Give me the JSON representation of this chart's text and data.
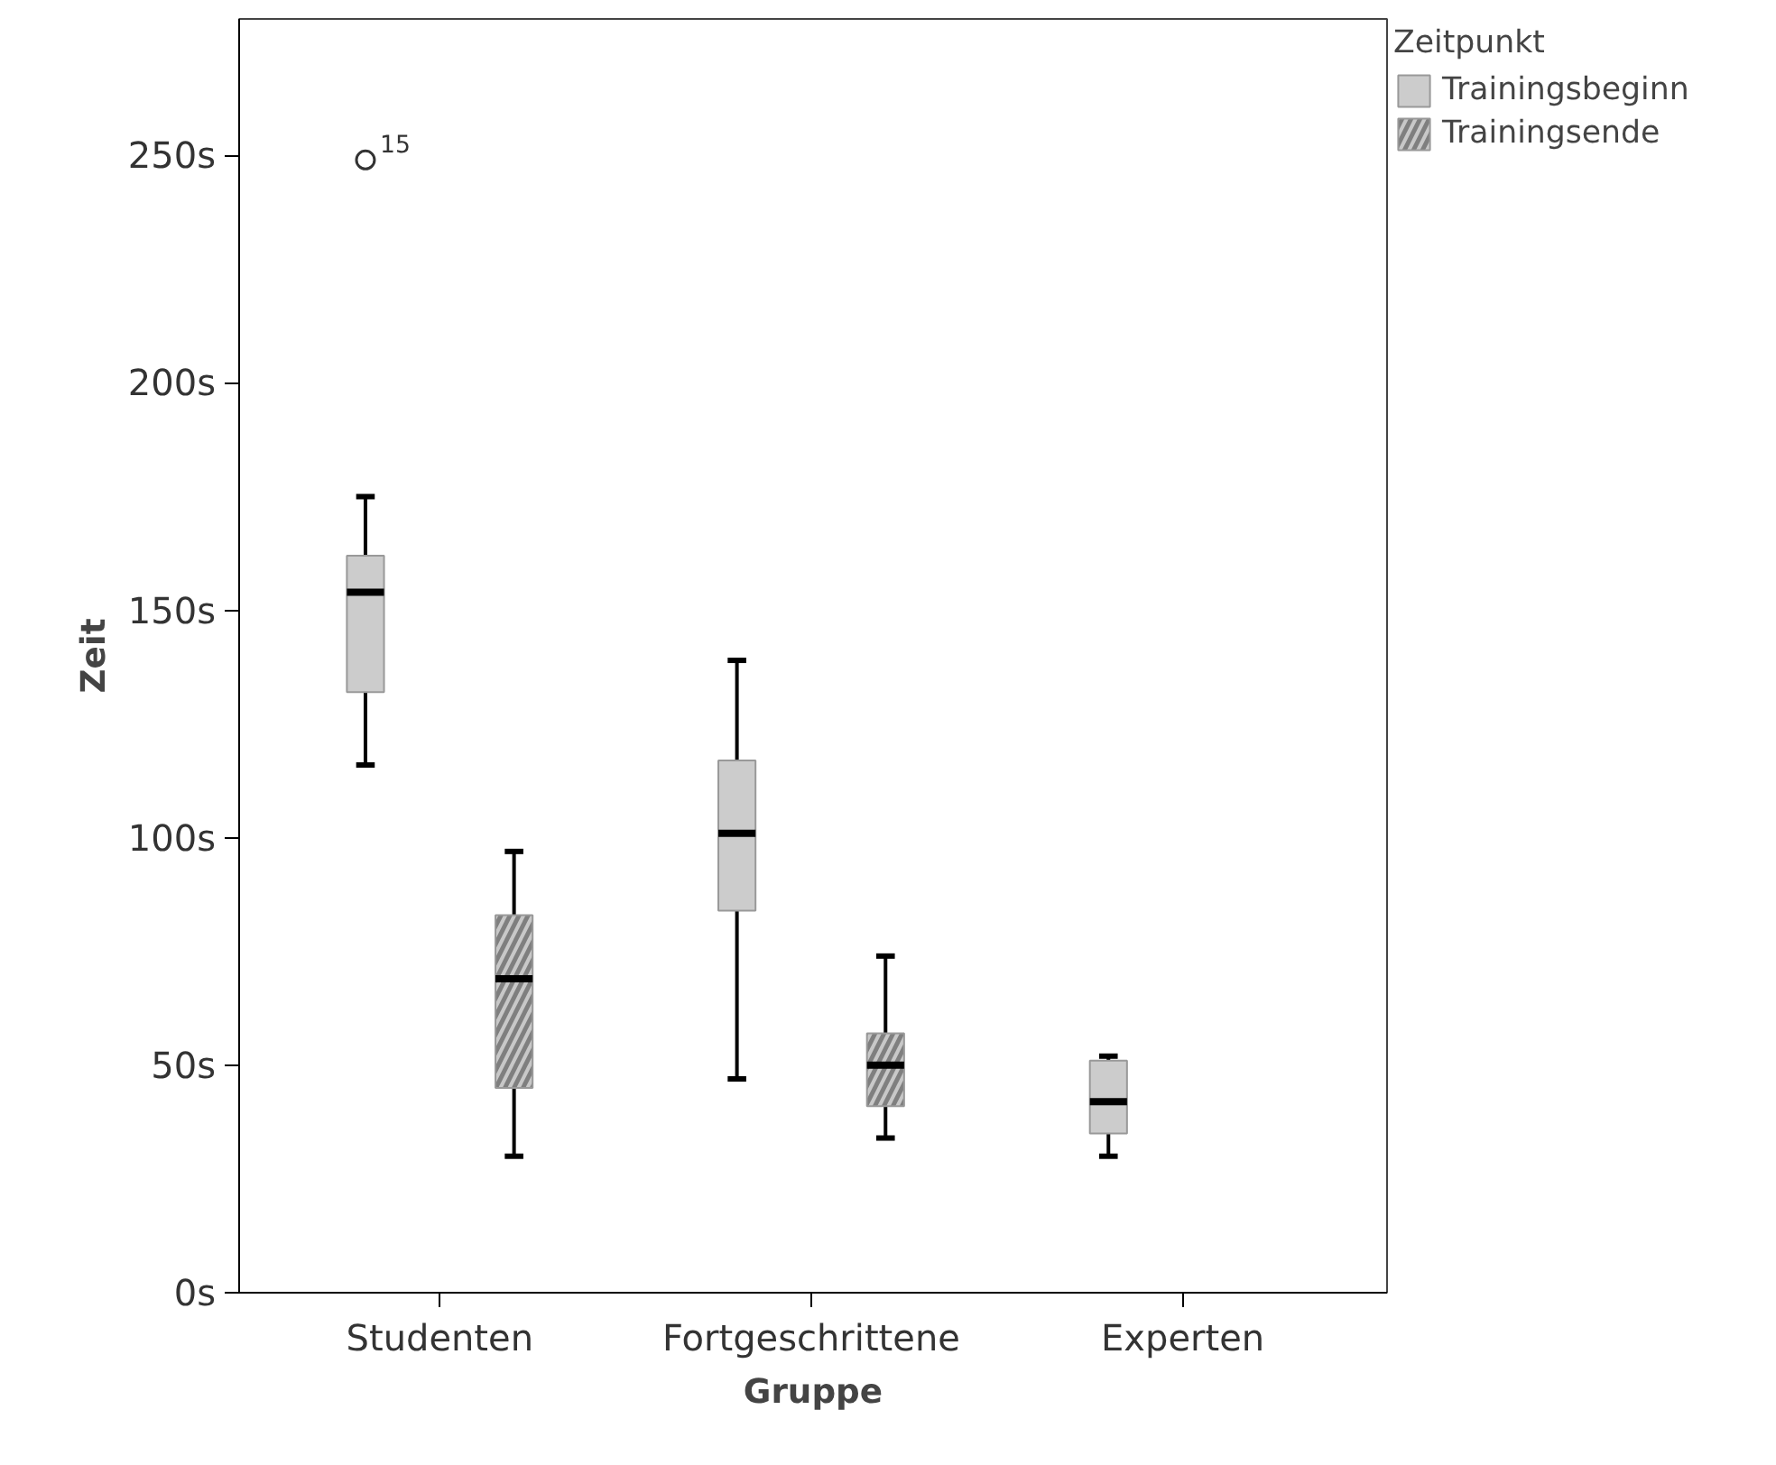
{
  "chart_data": {
    "type": "box",
    "xlabel": "Gruppe",
    "ylabel": "Zeit",
    "legend_title": "Zeitpunkt",
    "legend": "top right",
    "categories": [
      "Studenten",
      "Fortgeschrittene",
      "Experten"
    ],
    "ylim": [
      0,
      280
    ],
    "yticks": [
      {
        "value": 0,
        "label": "0s"
      },
      {
        "value": 50,
        "label": "50s"
      },
      {
        "value": 100,
        "label": "100s"
      },
      {
        "value": 150,
        "label": "150s"
      },
      {
        "value": 200,
        "label": "200s"
      },
      {
        "value": 250,
        "label": "250s"
      }
    ],
    "grid": false,
    "series": [
      {
        "name": "Trainingsbeginn",
        "color": "#cccccc",
        "boxes": [
          {
            "low": 116,
            "q1": 132,
            "median": 154,
            "q3": 162,
            "high": 175,
            "outliers": [
              249
            ]
          },
          {
            "low": 47,
            "q1": 84,
            "median": 101,
            "q3": 117,
            "high": 139
          },
          {
            "low": 30,
            "q1": 35,
            "median": 42,
            "q3": 51,
            "high": 52
          }
        ]
      },
      {
        "name": "Trainingsende",
        "color": "#7f7f7f",
        "boxes": [
          {
            "low": 30,
            "q1": 45,
            "median": 69,
            "q3": 83,
            "high": 97
          },
          {
            "low": 34,
            "q1": 41,
            "median": 50,
            "q3": 57,
            "high": 74
          },
          null
        ]
      }
    ],
    "annotations": [
      "15"
    ]
  }
}
